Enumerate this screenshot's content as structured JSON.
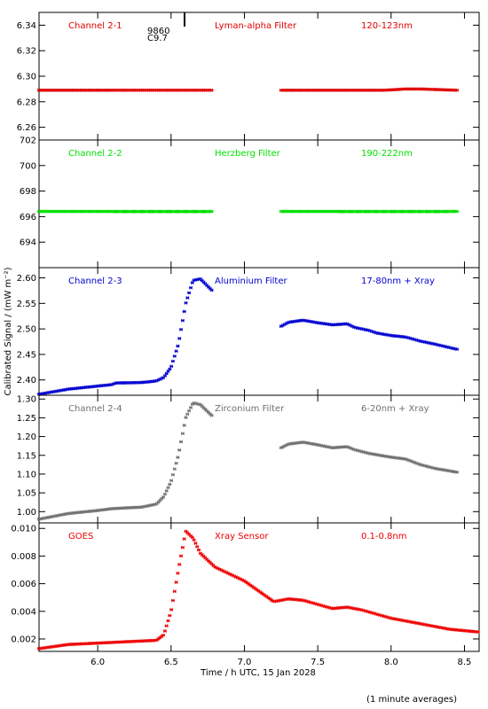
{
  "xlabel": "Time / h UTC, 15 Jan 2028",
  "ylabel": "Calibrated Signal / (mW m⁻²)",
  "footnote": "(1 minute averages)",
  "annotations": [
    "9860",
    "C9.7"
  ],
  "chart_data": [
    {
      "type": "scatter",
      "channel": "Channel 2-1",
      "filter": "Lyman-alpha Filter",
      "band": "120-123nm",
      "color": "#e00000",
      "xlim": [
        5.6,
        8.6
      ],
      "ylim": [
        6.25,
        6.35
      ],
      "yticks": [
        6.26,
        6.28,
        6.3,
        6.32,
        6.34
      ],
      "ytick_labels": [
        "6.26",
        "6.28",
        "6.30",
        "6.32",
        "6.34"
      ],
      "points": [
        [
          5.6,
          6.289
        ],
        [
          6.78,
          6.289
        ],
        [
          7.25,
          6.289
        ],
        [
          7.95,
          6.289
        ],
        [
          8.1,
          6.29
        ],
        [
          8.2,
          6.29
        ],
        [
          8.45,
          6.289
        ]
      ],
      "gaps": [
        [
          6.78,
          7.25
        ]
      ]
    },
    {
      "type": "scatter",
      "channel": "Channel 2-2",
      "filter": "Herzberg Filter",
      "band": "190-222nm",
      "color": "#00e000",
      "xlim": [
        5.6,
        8.6
      ],
      "ylim": [
        692,
        702
      ],
      "yticks": [
        694,
        696,
        698,
        700,
        702
      ],
      "ytick_labels": [
        "694",
        "696",
        "698",
        "700",
        "702"
      ],
      "points": [
        [
          5.6,
          696.4
        ],
        [
          6.3,
          696.4
        ],
        [
          6.78,
          696.4
        ],
        [
          7.25,
          696.4
        ],
        [
          7.8,
          696.4
        ],
        [
          8.45,
          696.4
        ]
      ],
      "gaps": [
        [
          6.78,
          7.25
        ]
      ]
    },
    {
      "type": "scatter",
      "channel": "Channel 2-3",
      "filter": "Aluminium Filter",
      "band": "17-80nm + Xray",
      "color": "#0000d0",
      "xlim": [
        5.6,
        8.6
      ],
      "ylim": [
        2.37,
        2.62
      ],
      "yticks": [
        2.4,
        2.45,
        2.5,
        2.55,
        2.6
      ],
      "ytick_labels": [
        "2.40",
        "2.45",
        "2.50",
        "2.55",
        "2.60"
      ],
      "points": [
        [
          5.6,
          2.372
        ],
        [
          5.8,
          2.382
        ],
        [
          6.0,
          2.388
        ],
        [
          6.1,
          2.391
        ],
        [
          6.12,
          2.394
        ],
        [
          6.3,
          2.395
        ],
        [
          6.4,
          2.398
        ],
        [
          6.45,
          2.405
        ],
        [
          6.5,
          2.425
        ],
        [
          6.55,
          2.47
        ],
        [
          6.6,
          2.55
        ],
        [
          6.65,
          2.595
        ],
        [
          6.7,
          2.598
        ],
        [
          6.78,
          2.575
        ],
        [
          7.25,
          2.505
        ],
        [
          7.3,
          2.513
        ],
        [
          7.4,
          2.517
        ],
        [
          7.5,
          2.512
        ],
        [
          7.6,
          2.508
        ],
        [
          7.7,
          2.51
        ],
        [
          7.75,
          2.503
        ],
        [
          7.85,
          2.497
        ],
        [
          7.9,
          2.492
        ],
        [
          8.0,
          2.487
        ],
        [
          8.1,
          2.484
        ],
        [
          8.2,
          2.476
        ],
        [
          8.3,
          2.47
        ],
        [
          8.45,
          2.46
        ]
      ],
      "gaps": [
        [
          6.78,
          7.25
        ]
      ]
    },
    {
      "type": "scatter",
      "channel": "Channel 2-4",
      "filter": "Zirconium Filter",
      "band": "6-20nm + Xray",
      "color": "#707070",
      "xlim": [
        5.6,
        8.6
      ],
      "ylim": [
        0.97,
        1.31
      ],
      "yticks": [
        1.0,
        1.05,
        1.1,
        1.15,
        1.2,
        1.25,
        1.3
      ],
      "ytick_labels": [
        "1.00",
        "1.05",
        "1.10",
        "1.15",
        "1.20",
        "1.25",
        "1.30"
      ],
      "points": [
        [
          5.6,
          0.98
        ],
        [
          5.8,
          0.995
        ],
        [
          6.0,
          1.003
        ],
        [
          6.1,
          1.008
        ],
        [
          6.3,
          1.012
        ],
        [
          6.4,
          1.02
        ],
        [
          6.45,
          1.04
        ],
        [
          6.5,
          1.08
        ],
        [
          6.55,
          1.15
        ],
        [
          6.6,
          1.25
        ],
        [
          6.65,
          1.29
        ],
        [
          6.7,
          1.285
        ],
        [
          6.78,
          1.255
        ],
        [
          7.25,
          1.17
        ],
        [
          7.3,
          1.18
        ],
        [
          7.4,
          1.185
        ],
        [
          7.5,
          1.178
        ],
        [
          7.6,
          1.17
        ],
        [
          7.7,
          1.173
        ],
        [
          7.75,
          1.165
        ],
        [
          7.85,
          1.155
        ],
        [
          8.0,
          1.145
        ],
        [
          8.1,
          1.14
        ],
        [
          8.2,
          1.125
        ],
        [
          8.3,
          1.115
        ],
        [
          8.45,
          1.105
        ]
      ],
      "gaps": [
        [
          6.78,
          7.25
        ]
      ]
    },
    {
      "type": "scatter",
      "channel": "GOES",
      "filter": "Xray Sensor",
      "band": "0.1-0.8nm",
      "color": "#ee0000",
      "xlim": [
        5.6,
        8.6
      ],
      "ylim": [
        0.0011,
        0.0104
      ],
      "yticks": [
        0.002,
        0.004,
        0.006,
        0.008,
        0.01
      ],
      "ytick_labels": [
        "0.002",
        "0.004",
        "0.006",
        "0.008",
        "0.010"
      ],
      "points": [
        [
          5.6,
          0.0013
        ],
        [
          5.8,
          0.0016
        ],
        [
          6.0,
          0.0017
        ],
        [
          6.2,
          0.0018
        ],
        [
          6.4,
          0.0019
        ],
        [
          6.45,
          0.0023
        ],
        [
          6.5,
          0.004
        ],
        [
          6.55,
          0.007
        ],
        [
          6.6,
          0.0098
        ],
        [
          6.65,
          0.0093
        ],
        [
          6.7,
          0.0082
        ],
        [
          6.8,
          0.0072
        ],
        [
          7.0,
          0.0062
        ],
        [
          7.2,
          0.0047
        ],
        [
          7.3,
          0.0049
        ],
        [
          7.4,
          0.0048
        ],
        [
          7.5,
          0.0045
        ],
        [
          7.6,
          0.0042
        ],
        [
          7.7,
          0.0043
        ],
        [
          7.8,
          0.0041
        ],
        [
          8.0,
          0.0035
        ],
        [
          8.2,
          0.0031
        ],
        [
          8.4,
          0.0027
        ],
        [
          8.6,
          0.0025
        ]
      ],
      "gaps": []
    }
  ],
  "xaxis": {
    "ticks": [
      6.0,
      6.5,
      7.0,
      7.5,
      8.0,
      8.5
    ],
    "labels": [
      "6.0",
      "6.5",
      "7.0",
      "7.5",
      "8.0",
      "8.5"
    ],
    "xlim": [
      5.6,
      8.6
    ]
  }
}
